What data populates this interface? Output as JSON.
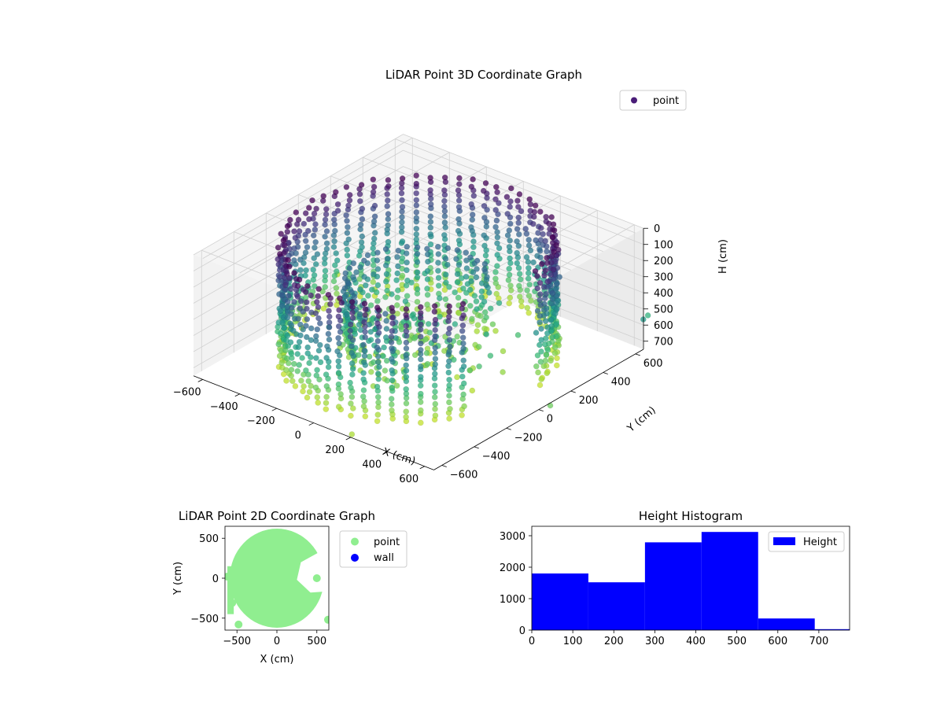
{
  "chart_data": [
    {
      "type": "scatter",
      "projection": "3d",
      "title": "LiDAR Point 3D Coordinate Graph",
      "xlabel": "X (cm)",
      "ylabel": "Y (cm)",
      "zlabel": "H (cm)",
      "xticks": [
        -600,
        -400,
        -200,
        0,
        200,
        400,
        600
      ],
      "yticks": [
        -600,
        -400,
        -200,
        0,
        200,
        400,
        600
      ],
      "zticks": [
        0,
        100,
        200,
        300,
        400,
        500,
        600,
        700
      ],
      "xlim": [
        -650,
        650
      ],
      "ylim": [
        -650,
        650
      ],
      "zlim": [
        0,
        750
      ],
      "zaxis_inverted": true,
      "legend": {
        "position": "top-right",
        "entries": [
          {
            "label": "point",
            "color": "#4a1d78"
          }
        ]
      },
      "colormap": "viridis",
      "description_shape": "ring/wall of points around origin at radius ~550 cm spanning heights 0-700 cm, with an inner partial ring at radius ~300 cm and scattered outliers",
      "outer_radius": 560,
      "inner_radius": 300,
      "grid": true
    },
    {
      "type": "scatter",
      "title": "LiDAR Point 2D Coordinate Graph",
      "xlabel": "X (cm)",
      "ylabel": "Y (cm)",
      "xticks": [
        -500,
        0,
        500
      ],
      "yticks": [
        -500,
        0,
        500
      ],
      "xlim": [
        -650,
        650
      ],
      "ylim": [
        -650,
        650
      ],
      "legend": {
        "position": "outside-right",
        "entries": [
          {
            "label": "point",
            "color": "#90ee90"
          },
          {
            "label": "wall",
            "color": "#0000ff"
          }
        ]
      },
      "series": [
        {
          "name": "point",
          "color": "#90ee90",
          "shape": "filled disc radius ~580 cm centered near (0,0) with notch cut on right side around y=0..200"
        },
        {
          "name": "wall",
          "color": "#0000ff",
          "values": []
        }
      ]
    },
    {
      "type": "bar",
      "title": "Height Histogram",
      "legend": {
        "position": "top-right",
        "entries": [
          {
            "label": "Height",
            "color": "#0000ff"
          }
        ]
      },
      "xticks": [
        0,
        100,
        200,
        300,
        400,
        500,
        600,
        700
      ],
      "yticks": [
        0,
        1000,
        2000,
        3000
      ],
      "xlim": [
        0,
        775
      ],
      "ylim": [
        0,
        3300
      ],
      "bin_edges": [
        0,
        138,
        276,
        414,
        552,
        690,
        775
      ],
      "values": [
        1800,
        1520,
        2790,
        3120,
        370,
        30
      ],
      "color": "#0000ff"
    }
  ]
}
